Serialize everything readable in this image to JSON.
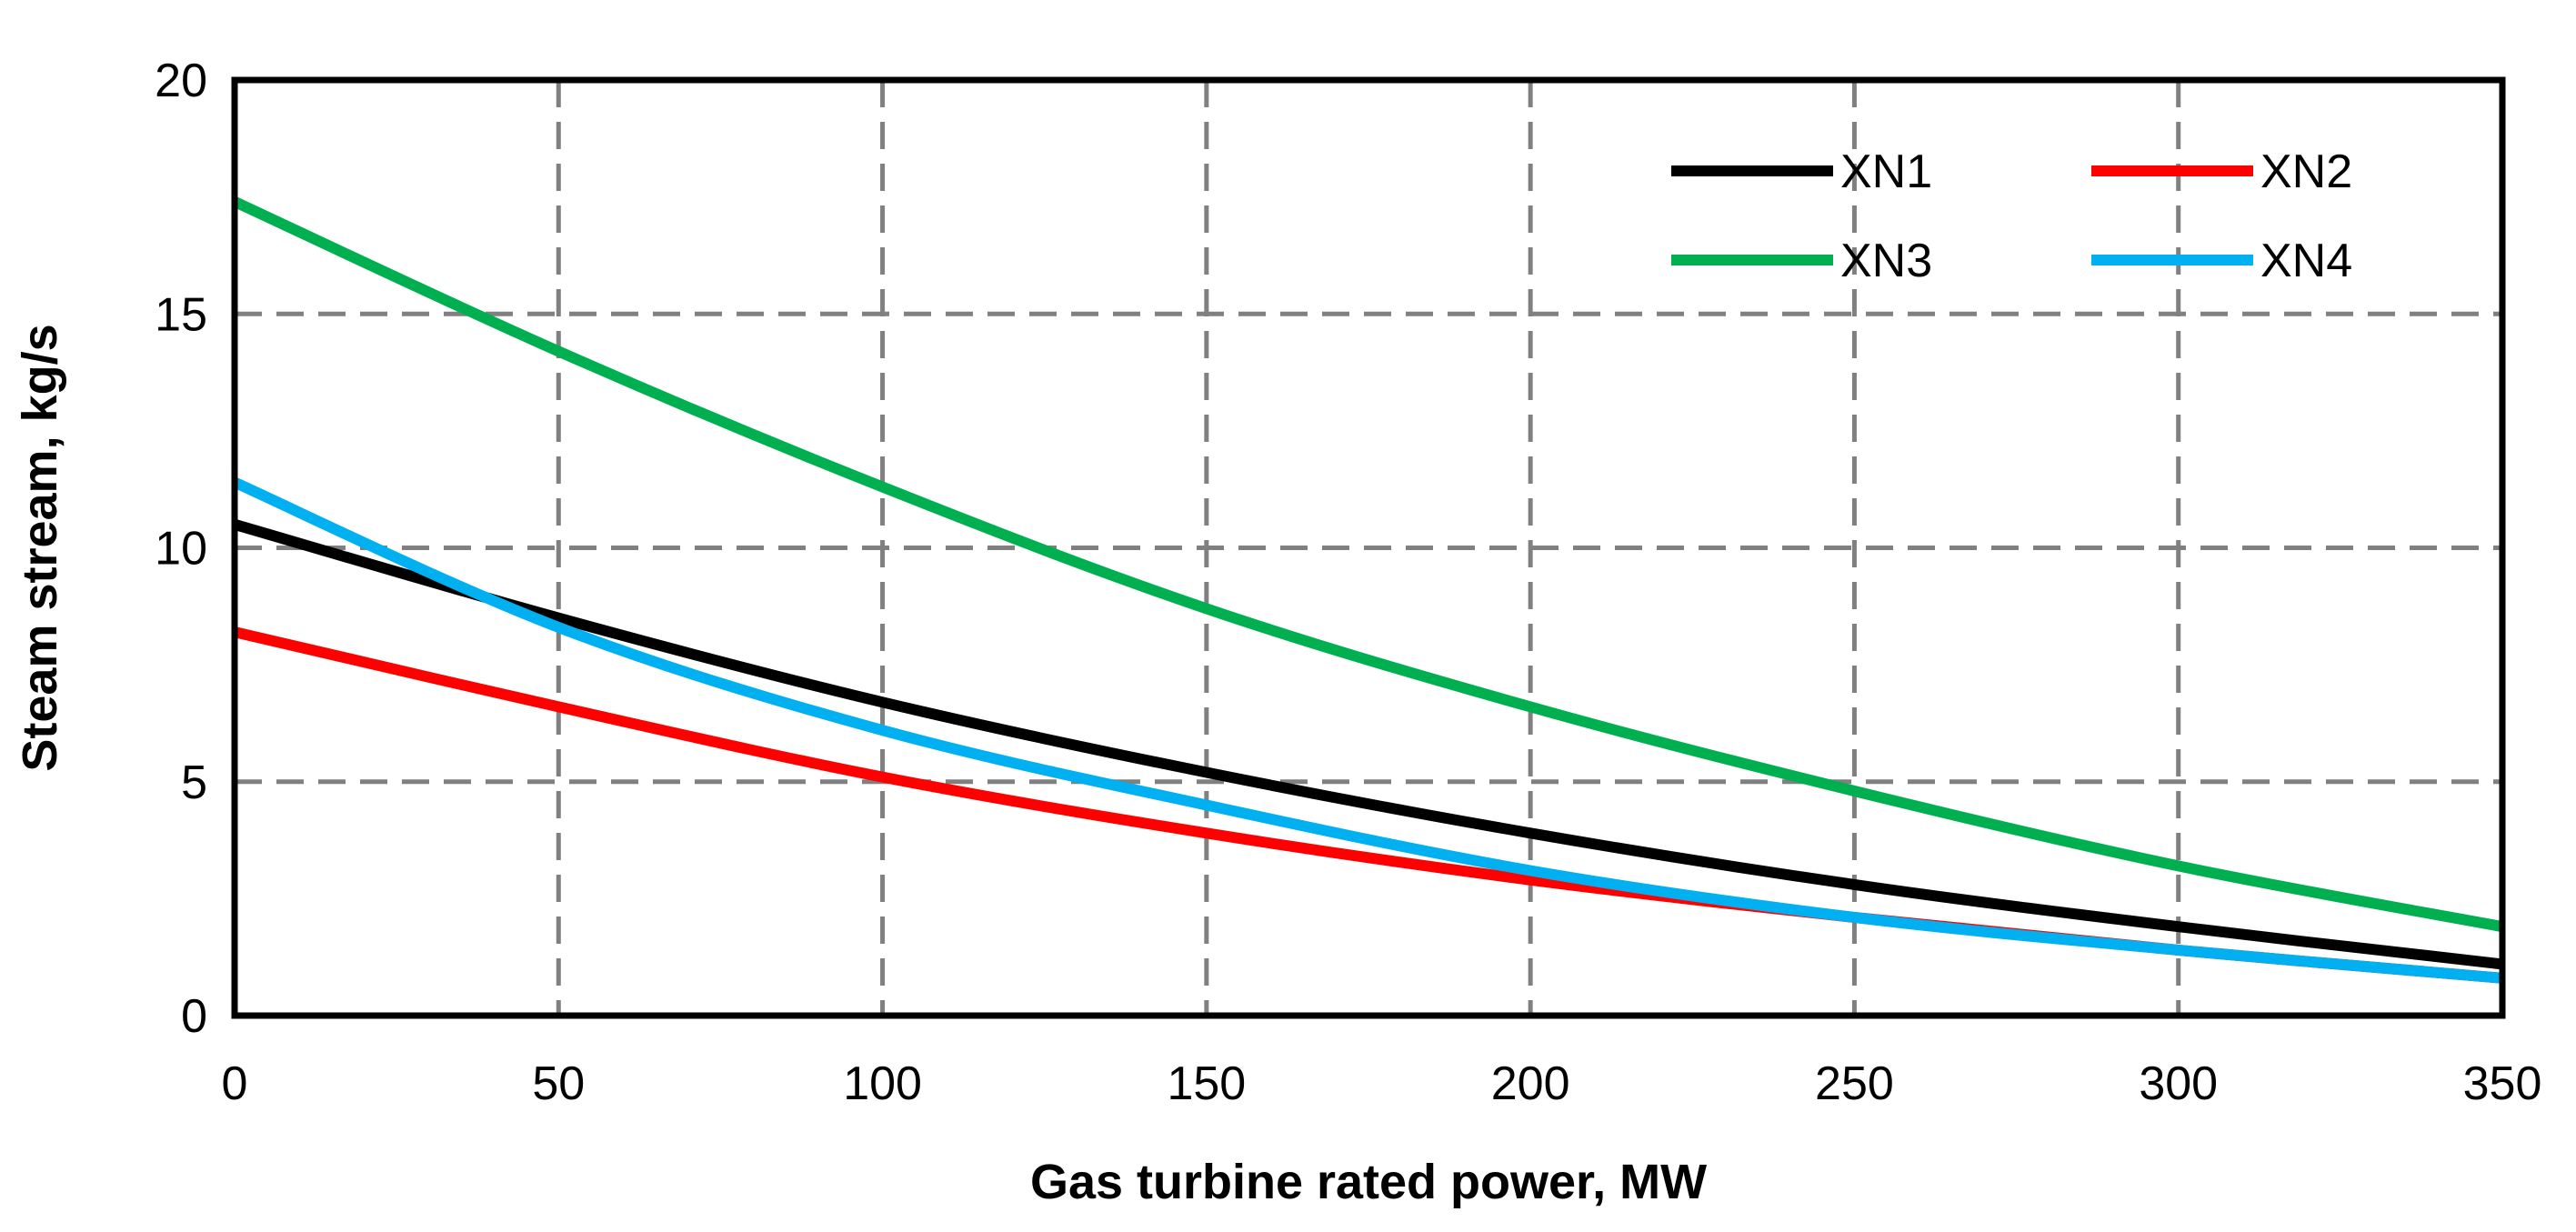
{
  "chart_data": {
    "type": "line",
    "title": "",
    "xlabel": "Gas turbine rated power, MW",
    "ylabel": "Steam stream, kg/s",
    "xlim": [
      0,
      350
    ],
    "ylim": [
      0,
      20
    ],
    "xticks": [
      0,
      50,
      100,
      150,
      200,
      250,
      300,
      350
    ],
    "yticks": [
      0,
      5,
      10,
      15,
      20
    ],
    "grid": "dashed",
    "legend_position": "top-right",
    "x": [
      0,
      50,
      100,
      150,
      200,
      250,
      300,
      350
    ],
    "series": [
      {
        "name": "XN1",
        "color": "#000000",
        "values": [
          10.5,
          8.5,
          6.7,
          5.2,
          3.9,
          2.8,
          1.9,
          1.1
        ]
      },
      {
        "name": "XN2",
        "color": "#ff0000",
        "values": [
          8.2,
          6.6,
          5.1,
          3.9,
          2.9,
          2.1,
          1.4,
          0.8
        ]
      },
      {
        "name": "XN3",
        "color": "#00b050",
        "values": [
          17.4,
          14.2,
          11.3,
          8.7,
          6.6,
          4.8,
          3.2,
          1.9
        ]
      },
      {
        "name": "XN4",
        "color": "#00b0f0",
        "values": [
          11.4,
          8.3,
          6.1,
          4.5,
          3.1,
          2.1,
          1.4,
          0.8
        ]
      }
    ]
  }
}
